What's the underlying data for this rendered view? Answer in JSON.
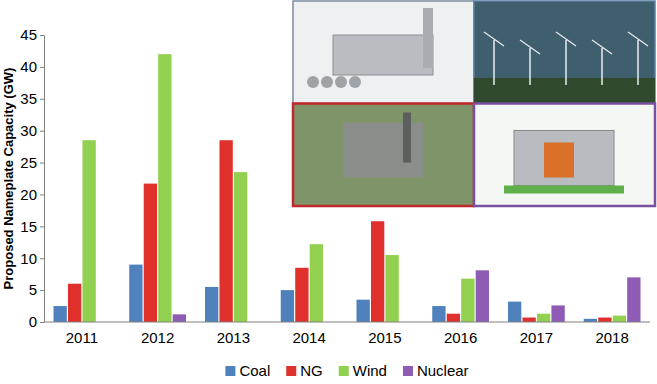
{
  "chart_data": {
    "type": "bar",
    "y_label": "Proposed Nameplate Capacity (GW)",
    "categories": [
      "2011",
      "2012",
      "2013",
      "2014",
      "2015",
      "2016",
      "2017",
      "2018"
    ],
    "series": [
      {
        "name": "Coal",
        "color": "#4f81bd",
        "values": [
          2.5,
          9,
          5.5,
          5,
          3.5,
          2.5,
          3.2,
          0.5
        ]
      },
      {
        "name": "NG",
        "color": "#e0302c",
        "values": [
          6,
          21.7,
          28.5,
          8.5,
          15.8,
          1.3,
          0.7,
          0.7
        ]
      },
      {
        "name": "Wind",
        "color": "#92d050",
        "values": [
          28.5,
          42,
          23.5,
          12.2,
          10.5,
          6.8,
          1.3,
          1
        ]
      },
      {
        "name": "Nuclear",
        "color": "#8e5bb5",
        "values": [
          0,
          1.2,
          0,
          0,
          0,
          8.1,
          2.6,
          7
        ]
      }
    ],
    "ylim": [
      0,
      45
    ],
    "yticks": [
      0,
      5,
      10,
      15,
      20,
      25,
      30,
      35,
      40,
      45
    ],
    "grid": false,
    "legend": "bottom"
  }
}
